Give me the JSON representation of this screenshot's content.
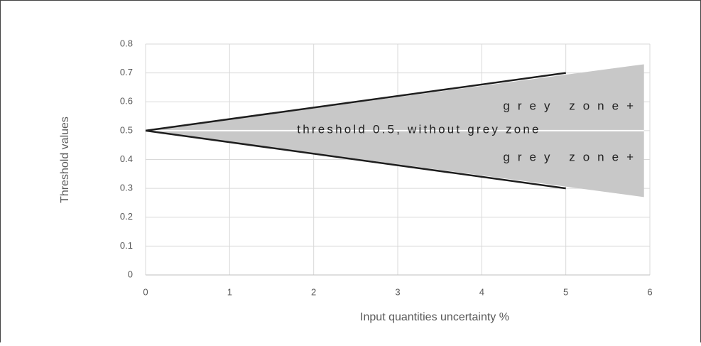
{
  "chart_data": {
    "type": "line",
    "x_label": "Input quantities uncertainty %",
    "y_label": "Threshold values",
    "xlim": [
      0,
      6
    ],
    "xticks": [
      0,
      1,
      2,
      3,
      4,
      5,
      6
    ],
    "ylim": [
      0,
      0.8
    ],
    "yticks": [
      0,
      0.1,
      0.2,
      0.3,
      0.4,
      0.5,
      0.6,
      0.7,
      0.8
    ],
    "grid": true,
    "area": {
      "color": "#c8c8c8",
      "x": [
        0,
        5.93
      ],
      "upper": [
        0.5,
        0.73
      ],
      "lower": [
        0.5,
        0.27
      ]
    },
    "series": [
      {
        "color": "#ffffff",
        "x": [
          0,
          5.93
        ],
        "values": [
          0.5,
          0.5
        ]
      },
      {
        "color": "#1e1e1e",
        "x": [
          0,
          5
        ],
        "values": [
          0.5,
          0.7
        ]
      },
      {
        "color": "#1e1e1e",
        "x": [
          0,
          5
        ],
        "values": [
          0.5,
          0.3
        ]
      }
    ],
    "annotations": [
      "grey zone+",
      "threshold 0.5, without grey zone",
      "grey zone+"
    ]
  }
}
